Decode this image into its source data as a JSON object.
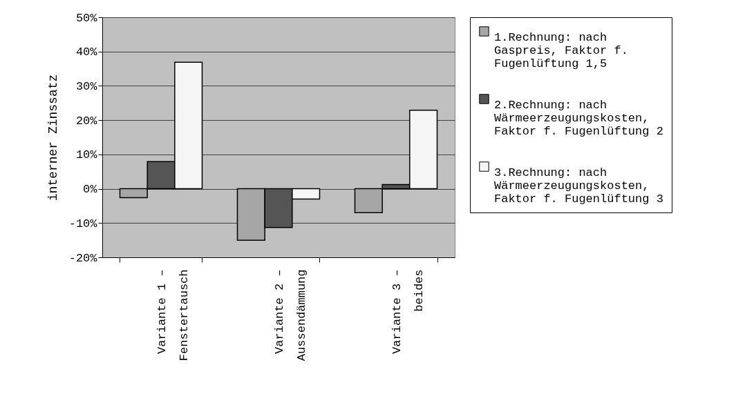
{
  "chart_data": {
    "type": "bar",
    "ylabel": "interner Zinssatz",
    "categories": [
      "Variante 1 – Fenstertausch",
      "Variante 2 – Aussendämmung",
      "Variante 3 – beides"
    ],
    "series": [
      {
        "name": "1.Rechnung: nach Gaspreis, Faktor f. Fugenlüftung 1,5",
        "color": "#a6a6a6",
        "values": [
          -2.6,
          -15.0,
          -7.0
        ]
      },
      {
        "name": "2.Rechnung: nach Wärmeerzeugungskosten, Faktor f. Fugenlüftung 2",
        "color": "#555555",
        "values": [
          7.9,
          -11.3,
          1.2
        ]
      },
      {
        "name": "3.Rechnung: nach Wärmeerzeugungskosten, Faktor f. Fugenlüftung 3",
        "color": "#f5f5f5",
        "values": [
          36.9,
          -3.0,
          22.9
        ]
      }
    ],
    "ylim": [
      -20,
      50
    ],
    "yticks": [
      {
        "value": -20,
        "label": "-20%"
      },
      {
        "value": -10,
        "label": "-10%"
      },
      {
        "value": 0,
        "label": "0%"
      },
      {
        "value": 10,
        "label": "10%"
      },
      {
        "value": 20,
        "label": "20%"
      },
      {
        "value": 30,
        "label": "30%"
      },
      {
        "value": 40,
        "label": "40%"
      },
      {
        "value": 50,
        "label": "50%"
      }
    ],
    "grid": "y",
    "legend": "right"
  }
}
